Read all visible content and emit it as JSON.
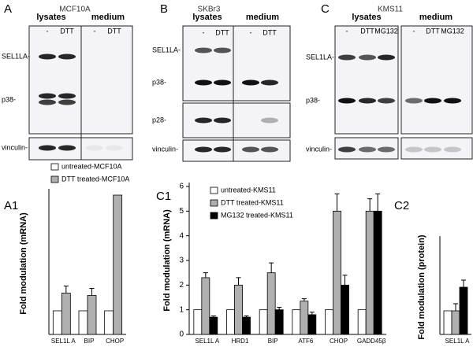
{
  "blots": [
    {
      "label": "A",
      "title": "MCF10A",
      "groups": [
        {
          "name": "lysates",
          "lanes": [
            "-",
            "DTT"
          ]
        },
        {
          "name": "medium",
          "lanes": [
            "-",
            "DTT"
          ]
        }
      ],
      "bands": [
        "SEL1LA-",
        "p38-",
        "vinculin-"
      ]
    },
    {
      "label": "B",
      "title": "SKBr3",
      "groups": [
        {
          "name": "lysates",
          "lanes": [
            "-",
            "DTT"
          ]
        },
        {
          "name": "medium",
          "lanes": [
            "-",
            "DTT"
          ]
        }
      ],
      "bands": [
        "SEL1LA-",
        "p38-",
        "p28-",
        "vinculin-"
      ]
    },
    {
      "label": "C",
      "title": "KMS11",
      "groups": [
        {
          "name": "lysates",
          "lanes": [
            "-",
            "DTT",
            "MG132"
          ]
        },
        {
          "name": "medium",
          "lanes": [
            "-",
            "DTT",
            "MG132"
          ]
        }
      ],
      "bands": [
        "SEL1LA-",
        "p38-",
        "vinculin-"
      ]
    }
  ],
  "chart_data": [
    {
      "type": "bar",
      "panel_label": "A1",
      "ylabel": "Fold modulation (mRNA)",
      "categories": [
        "SEL1L A",
        "BIP",
        "CHOP"
      ],
      "series": [
        {
          "name": "untreated-MCF10A",
          "color": "#ffffff",
          "values": [
            1,
            1,
            1
          ]
        },
        {
          "name": "DTT treated-MCF10A",
          "color": "#b0b0b0",
          "values": [
            1.75,
            1.65,
            5.9
          ],
          "errors": [
            0.3,
            0.3,
            null
          ]
        }
      ],
      "ylim": [
        0,
        6
      ]
    },
    {
      "type": "bar",
      "panel_label": "C1",
      "ylabel": "Fold modulation (mRNA)",
      "categories": [
        "SEL1L A",
        "HRD1",
        "BIP",
        "ATF6",
        "CHOP",
        "GADD45β"
      ],
      "series": [
        {
          "name": "untreated-KMS11",
          "color": "#ffffff",
          "values": [
            1,
            1,
            1,
            1,
            1,
            1
          ]
        },
        {
          "name": "DTT treated-KMS11",
          "color": "#b0b0b0",
          "values": [
            2.3,
            2.0,
            2.5,
            1.35,
            5.0,
            5.0
          ],
          "errors": [
            0.2,
            0.3,
            0.4,
            0.1,
            0.7,
            0.5
          ]
        },
        {
          "name": "MG132 treated-KMS11",
          "color": "#000000",
          "values": [
            0.7,
            0.7,
            1.0,
            0.8,
            2.0,
            5.0
          ],
          "errors": [
            0.05,
            0.05,
            0.1,
            0.1,
            0.4,
            0.7
          ]
        }
      ],
      "ylim": [
        0,
        6
      ],
      "yticks": [
        0,
        1,
        2,
        3,
        4,
        5,
        6
      ]
    },
    {
      "type": "bar",
      "panel_label": "C2",
      "ylabel": "Fold modulation (protein)",
      "categories": [
        "SEL1L A"
      ],
      "series": [
        {
          "name": "untreated",
          "color": "#ffffff",
          "values": [
            1
          ]
        },
        {
          "name": "DTT",
          "color": "#b0b0b0",
          "values": [
            1
          ],
          "errors": [
            0.3
          ]
        },
        {
          "name": "MG132",
          "color": "#000000",
          "values": [
            2.0
          ],
          "errors": [
            0.3
          ]
        }
      ],
      "ylim": [
        0,
        4
      ],
      "legend": false
    }
  ]
}
